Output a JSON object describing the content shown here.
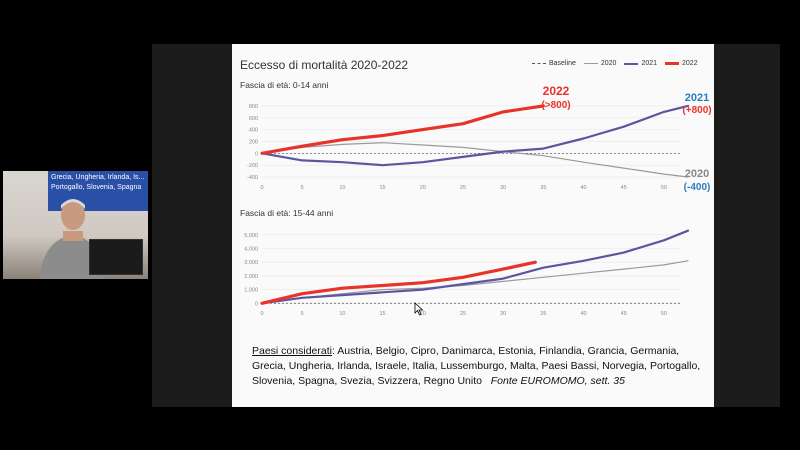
{
  "slide": {
    "title": "Eccesso di mortalità 2020-2022",
    "legend": {
      "baseline": "Baseline",
      "y2020": "2020",
      "y2021": "2021",
      "y2022": "2022"
    },
    "panel1_label": "Fascia di età: 0-14 anni",
    "panel2_label": "Fascia di età: 15-44 anni",
    "annot_2022_year": "2022",
    "annot_2022_value": "(>800)",
    "annot_2021_year": "2021",
    "annot_2021_value": "(+800)",
    "annot_2020_year": "2020",
    "annot_2020_value": "(-400)",
    "note_label": "Paesi considerati",
    "note_text": ": Austria, Belgio, Cipro, Danimarca, Estonia, Finlandia, Grancia, Germania, Grecia, Ungheria, Irlanda, Israele, Italia, Lussemburgo, Malta, Paesi Bassi, Norvegia, Portogallo, Slovenia, Spagna, Svezia, Svizzera, Regno Unito",
    "source": "Fonte EUROMOMO, sett. 35",
    "colors": {
      "y2020": "#9a9a9a",
      "y2021": "#5b56a0",
      "y2022": "#e8332a",
      "annot_blue": "#2a7fc1"
    }
  },
  "webcam": {
    "banner_text": "Grecia, Ungheria, Irlanda, Is... Portogallo, Slovenia, Spagna"
  },
  "chart_data": [
    {
      "type": "line",
      "title": "Fascia di età: 0-14 anni",
      "x_ticks": [
        "0",
        "5",
        "10",
        "15",
        "20",
        "25",
        "30",
        "35",
        "40",
        "45",
        "50"
      ],
      "y_ticks": [
        "-400",
        "-200",
        "0",
        "200",
        "400",
        "600",
        "800"
      ],
      "ylim": [
        -450,
        900
      ],
      "xlim": [
        0,
        52
      ],
      "series": [
        {
          "name": "2020",
          "x": [
            0,
            5,
            10,
            15,
            20,
            25,
            30,
            35,
            40,
            45,
            50,
            53
          ],
          "y": [
            0,
            100,
            150,
            180,
            140,
            100,
            30,
            -40,
            -150,
            -250,
            -350,
            -400
          ]
        },
        {
          "name": "2021",
          "x": [
            0,
            5,
            10,
            15,
            20,
            25,
            30,
            35,
            40,
            45,
            50,
            53
          ],
          "y": [
            0,
            -120,
            -150,
            -200,
            -150,
            -60,
            30,
            80,
            250,
            450,
            700,
            800
          ]
        },
        {
          "name": "2022",
          "x": [
            0,
            5,
            10,
            15,
            20,
            25,
            30,
            35
          ],
          "y": [
            0,
            120,
            230,
            300,
            400,
            500,
            700,
            800
          ]
        }
      ]
    },
    {
      "type": "line",
      "title": "Fascia di età: 15-44 anni",
      "x_ticks": [
        "0",
        "5",
        "10",
        "15",
        "20",
        "25",
        "30",
        "35",
        "40",
        "45",
        "50"
      ],
      "y_ticks": [
        "0",
        "1,000",
        "2,000",
        "3,000",
        "4,000",
        "5,000"
      ],
      "ylim": [
        -200,
        5500
      ],
      "xlim": [
        0,
        52
      ],
      "series": [
        {
          "name": "2020",
          "x": [
            0,
            5,
            10,
            15,
            20,
            25,
            30,
            35,
            40,
            45,
            50,
            53
          ],
          "y": [
            0,
            400,
            700,
            1000,
            1100,
            1300,
            1600,
            1900,
            2200,
            2500,
            2800,
            3100
          ]
        },
        {
          "name": "2021",
          "x": [
            0,
            5,
            10,
            15,
            20,
            25,
            30,
            35,
            40,
            45,
            50,
            53
          ],
          "y": [
            0,
            400,
            600,
            800,
            1000,
            1400,
            1800,
            2600,
            3100,
            3700,
            4600,
            5300
          ]
        },
        {
          "name": "2022",
          "x": [
            0,
            5,
            10,
            15,
            20,
            25,
            30,
            34
          ],
          "y": [
            0,
            700,
            1100,
            1300,
            1500,
            1900,
            2500,
            3000
          ]
        }
      ]
    }
  ]
}
